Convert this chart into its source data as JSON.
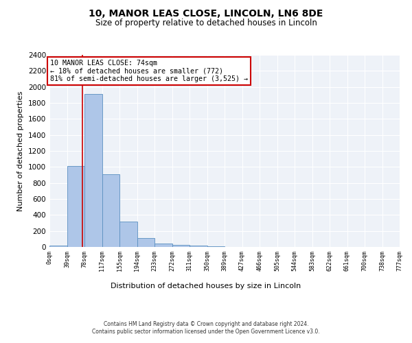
{
  "title": "10, MANOR LEAS CLOSE, LINCOLN, LN6 8DE",
  "subtitle": "Size of property relative to detached houses in Lincoln",
  "xlabel": "Distribution of detached houses by size in Lincoln",
  "ylabel": "Number of detached properties",
  "bin_labels": [
    "0sqm",
    "39sqm",
    "78sqm",
    "117sqm",
    "155sqm",
    "194sqm",
    "233sqm",
    "272sqm",
    "311sqm",
    "350sqm",
    "389sqm",
    "427sqm",
    "466sqm",
    "505sqm",
    "544sqm",
    "583sqm",
    "622sqm",
    "661sqm",
    "700sqm",
    "738sqm",
    "777sqm"
  ],
  "bar_values": [
    15,
    1010,
    1910,
    910,
    315,
    110,
    45,
    25,
    20,
    10,
    0,
    0,
    0,
    0,
    0,
    0,
    0,
    0,
    0,
    0
  ],
  "bar_color": "#aec6e8",
  "bar_edge_color": "#5a8fc0",
  "vline_x": 74,
  "vline_color": "#cc0000",
  "annotation_text": "10 MANOR LEAS CLOSE: 74sqm\n← 18% of detached houses are smaller (772)\n81% of semi-detached houses are larger (3,525) →",
  "annotation_box_color": "#ffffff",
  "annotation_box_edge_color": "#cc0000",
  "ylim": [
    0,
    2400
  ],
  "yticks": [
    0,
    200,
    400,
    600,
    800,
    1000,
    1200,
    1400,
    1600,
    1800,
    2000,
    2200,
    2400
  ],
  "footer_line1": "Contains HM Land Registry data © Crown copyright and database right 2024.",
  "footer_line2": "Contains public sector information licensed under the Open Government Licence v3.0.",
  "bg_color": "#eef2f8",
  "grid_color": "#ffffff",
  "bin_width": 39,
  "title_fontsize": 10,
  "subtitle_fontsize": 8.5
}
